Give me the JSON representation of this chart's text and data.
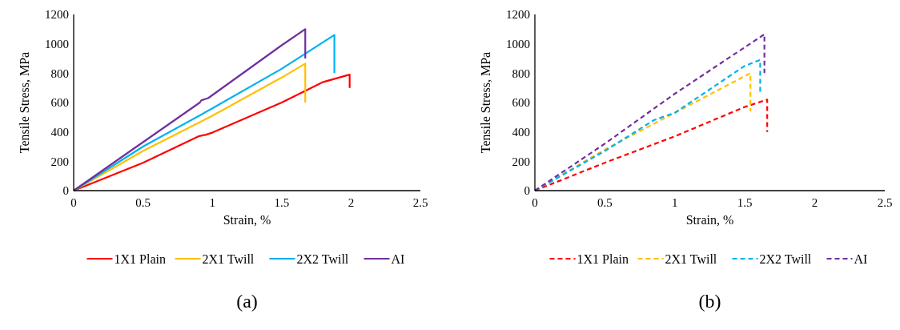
{
  "chart_data": [
    {
      "type": "line",
      "xlabel": "Strain, %",
      "ylabel": "Tensile Stress, MPa",
      "xlim": [
        0,
        2.5
      ],
      "xticks": [
        0,
        0.5,
        1,
        1.5,
        2,
        2.5
      ],
      "ylim": [
        0,
        1200
      ],
      "yticks": [
        0,
        200,
        400,
        600,
        800,
        1000,
        1200
      ],
      "grid": false,
      "legend": "bottom",
      "line_style": "solid",
      "annotations": [
        "(a)"
      ],
      "series": [
        {
          "name": "1X1 Plain",
          "color": "#ff0000",
          "x": [
            0,
            0.5,
            0.9,
            0.95,
            1,
            1.5,
            1.8,
            1.99,
            1.99
          ],
          "values": [
            0,
            190,
            370,
            380,
            395,
            600,
            740,
            790,
            700
          ]
        },
        {
          "name": "2X1 Twill",
          "color": "#ffc000",
          "x": [
            0,
            0.5,
            1,
            1.5,
            1.67,
            1.67
          ],
          "values": [
            0,
            270,
            510,
            770,
            865,
            600
          ]
        },
        {
          "name": "2X2 Twill",
          "color": "#00b0f0",
          "x": [
            0,
            0.5,
            1,
            1.5,
            1.88,
            1.88
          ],
          "values": [
            0,
            300,
            560,
            830,
            1060,
            800
          ]
        },
        {
          "name": "AI",
          "color": "#7030a0",
          "x": [
            0,
            0.5,
            0.91,
            0.92,
            0.97,
            1.5,
            1.67,
            1.67
          ],
          "values": [
            0,
            330,
            600,
            615,
            630,
            990,
            1100,
            900
          ]
        }
      ]
    },
    {
      "type": "line",
      "xlabel": "Strain, %",
      "ylabel": "Tensile Stress, MPa",
      "xlim": [
        0,
        2.5
      ],
      "xticks": [
        0,
        0.5,
        1,
        1.5,
        2,
        2.5
      ],
      "ylim": [
        0,
        1200
      ],
      "yticks": [
        0,
        200,
        400,
        600,
        800,
        1000,
        1200
      ],
      "grid": false,
      "legend": "bottom",
      "line_style": "dashed",
      "annotations": [
        "(b)"
      ],
      "series": [
        {
          "name": "1X1 Plain",
          "color": "#ff0000",
          "x": [
            0,
            0.5,
            1,
            1.5,
            1.66,
            1.66
          ],
          "values": [
            0,
            190,
            370,
            570,
            620,
            400
          ]
        },
        {
          "name": "2X1 Twill",
          "color": "#ffc000",
          "x": [
            0,
            0.5,
            1,
            1.54,
            1.54
          ],
          "values": [
            0,
            280,
            530,
            800,
            540
          ]
        },
        {
          "name": "2X2 Twill",
          "color": "#00b0f0",
          "x": [
            0,
            0.5,
            0.85,
            1,
            1.5,
            1.61,
            1.61
          ],
          "values": [
            0,
            270,
            480,
            530,
            850,
            890,
            670
          ]
        },
        {
          "name": "AI",
          "color": "#7030a0",
          "x": [
            0,
            0.5,
            1,
            1.64,
            1.64
          ],
          "values": [
            0,
            320,
            660,
            1065,
            800
          ]
        }
      ]
    }
  ]
}
